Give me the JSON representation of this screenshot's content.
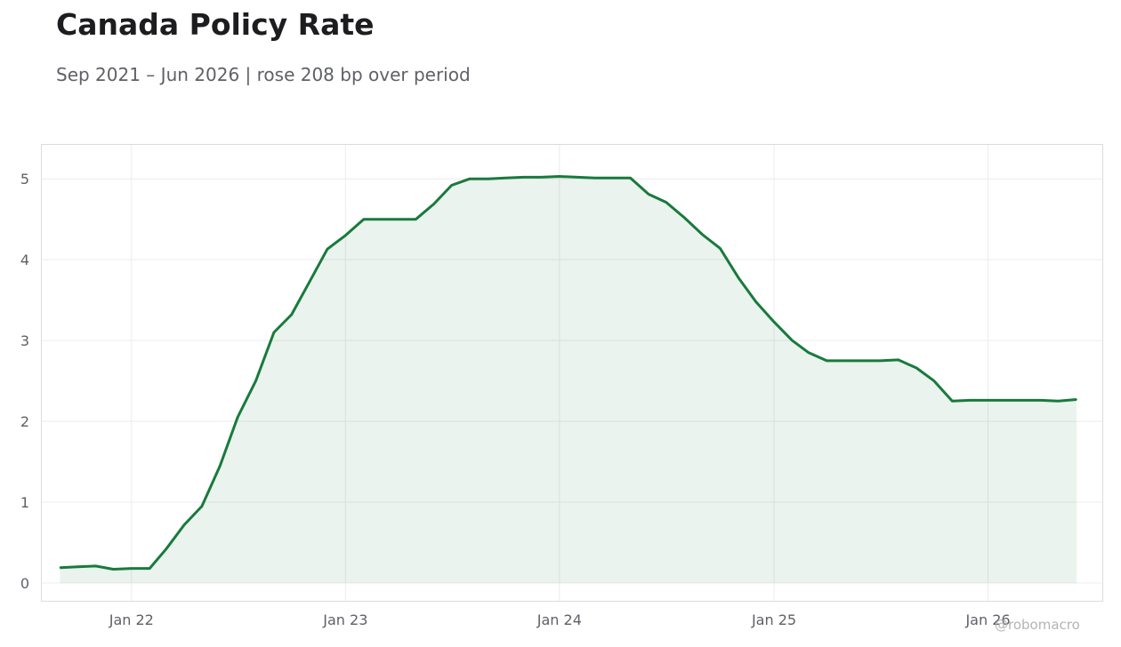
{
  "title": "Canada Policy Rate",
  "subtitle": "Sep 2021 – Jun 2026 | rose 208 bp over period",
  "credit": "@robomacro",
  "chart_data": {
    "type": "area",
    "title": "Canada Policy Rate",
    "subtitle": "Sep 2021 – Jun 2026 | rose 208 bp over period",
    "xlabel": "",
    "ylabel": "",
    "x_range": [
      "2021-08-01",
      "2026-07-15"
    ],
    "ylim": [
      -0.22,
      5.42
    ],
    "x_ticks": [
      {
        "date": "2022-01-01",
        "label": "Jan 22"
      },
      {
        "date": "2023-01-01",
        "label": "Jan 23"
      },
      {
        "date": "2024-01-01",
        "label": "Jan 24"
      },
      {
        "date": "2025-01-01",
        "label": "Jan 25"
      },
      {
        "date": "2026-01-01",
        "label": "Jan 26"
      }
    ],
    "y_ticks": [
      0,
      1,
      2,
      3,
      4,
      5
    ],
    "grid": true,
    "legend": "none",
    "line_color": "#187a3c",
    "fill_color": "#187a3c",
    "fill_opacity": 0.09,
    "series": [
      {
        "x": [
          "2021-09-01",
          "2021-10-01",
          "2021-11-01",
          "2021-12-01",
          "2022-01-01",
          "2022-02-01",
          "2022-03-01",
          "2022-04-01",
          "2022-05-01",
          "2022-06-01",
          "2022-07-01",
          "2022-08-01",
          "2022-09-01",
          "2022-10-01",
          "2022-11-01",
          "2022-12-01",
          "2023-01-01",
          "2023-02-01",
          "2023-03-01",
          "2023-04-01",
          "2023-05-01",
          "2023-06-01",
          "2023-07-01",
          "2023-08-01",
          "2023-09-01",
          "2023-10-01",
          "2023-11-01",
          "2023-12-01",
          "2024-01-01",
          "2024-02-01",
          "2024-03-01",
          "2024-04-01",
          "2024-05-01",
          "2024-06-01",
          "2024-07-01",
          "2024-08-01",
          "2024-09-01",
          "2024-10-01",
          "2024-11-01",
          "2024-12-01",
          "2025-01-01",
          "2025-02-01",
          "2025-03-01",
          "2025-04-01",
          "2025-05-01",
          "2025-06-01",
          "2025-07-01",
          "2025-08-01",
          "2025-09-01",
          "2025-10-01",
          "2025-11-01",
          "2025-12-01",
          "2026-01-01",
          "2026-02-01",
          "2026-03-01",
          "2026-04-01",
          "2026-05-01",
          "2026-06-01"
        ],
        "values": [
          0.19,
          0.2,
          0.21,
          0.17,
          0.18,
          0.18,
          0.42,
          0.72,
          0.95,
          1.45,
          2.05,
          2.5,
          3.1,
          3.32,
          3.73,
          4.13,
          4.3,
          4.5,
          4.5,
          4.5,
          4.5,
          4.69,
          4.92,
          5.0,
          5.0,
          5.01,
          5.02,
          5.02,
          5.03,
          5.02,
          5.01,
          5.01,
          5.01,
          4.81,
          4.71,
          4.52,
          4.31,
          4.14,
          3.78,
          3.48,
          3.23,
          3.0,
          2.85,
          2.75,
          2.75,
          2.75,
          2.75,
          2.76,
          2.66,
          2.5,
          2.25,
          2.26,
          2.26,
          2.26,
          2.26,
          2.26,
          2.25,
          2.27
        ]
      }
    ]
  }
}
